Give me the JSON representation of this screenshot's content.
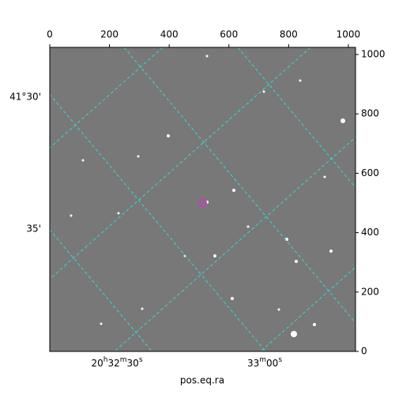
{
  "chart_data": {
    "type": "image",
    "xlim": [
      0,
      1024
    ],
    "ylim": [
      0,
      1024
    ],
    "xticks": [
      0,
      200,
      400,
      600,
      800,
      1000
    ],
    "yticks": [
      0,
      200,
      400,
      600,
      800,
      1000
    ],
    "ra_ticks": [
      "20h32m30s",
      "33m00s"
    ],
    "dec_ticks": [
      "41°30'",
      "35'"
    ],
    "xlabel": "pos.eq.ra",
    "marker": {
      "x": [
        512
      ],
      "y": [
        500
      ],
      "color": "#c040c0"
    }
  }
}
